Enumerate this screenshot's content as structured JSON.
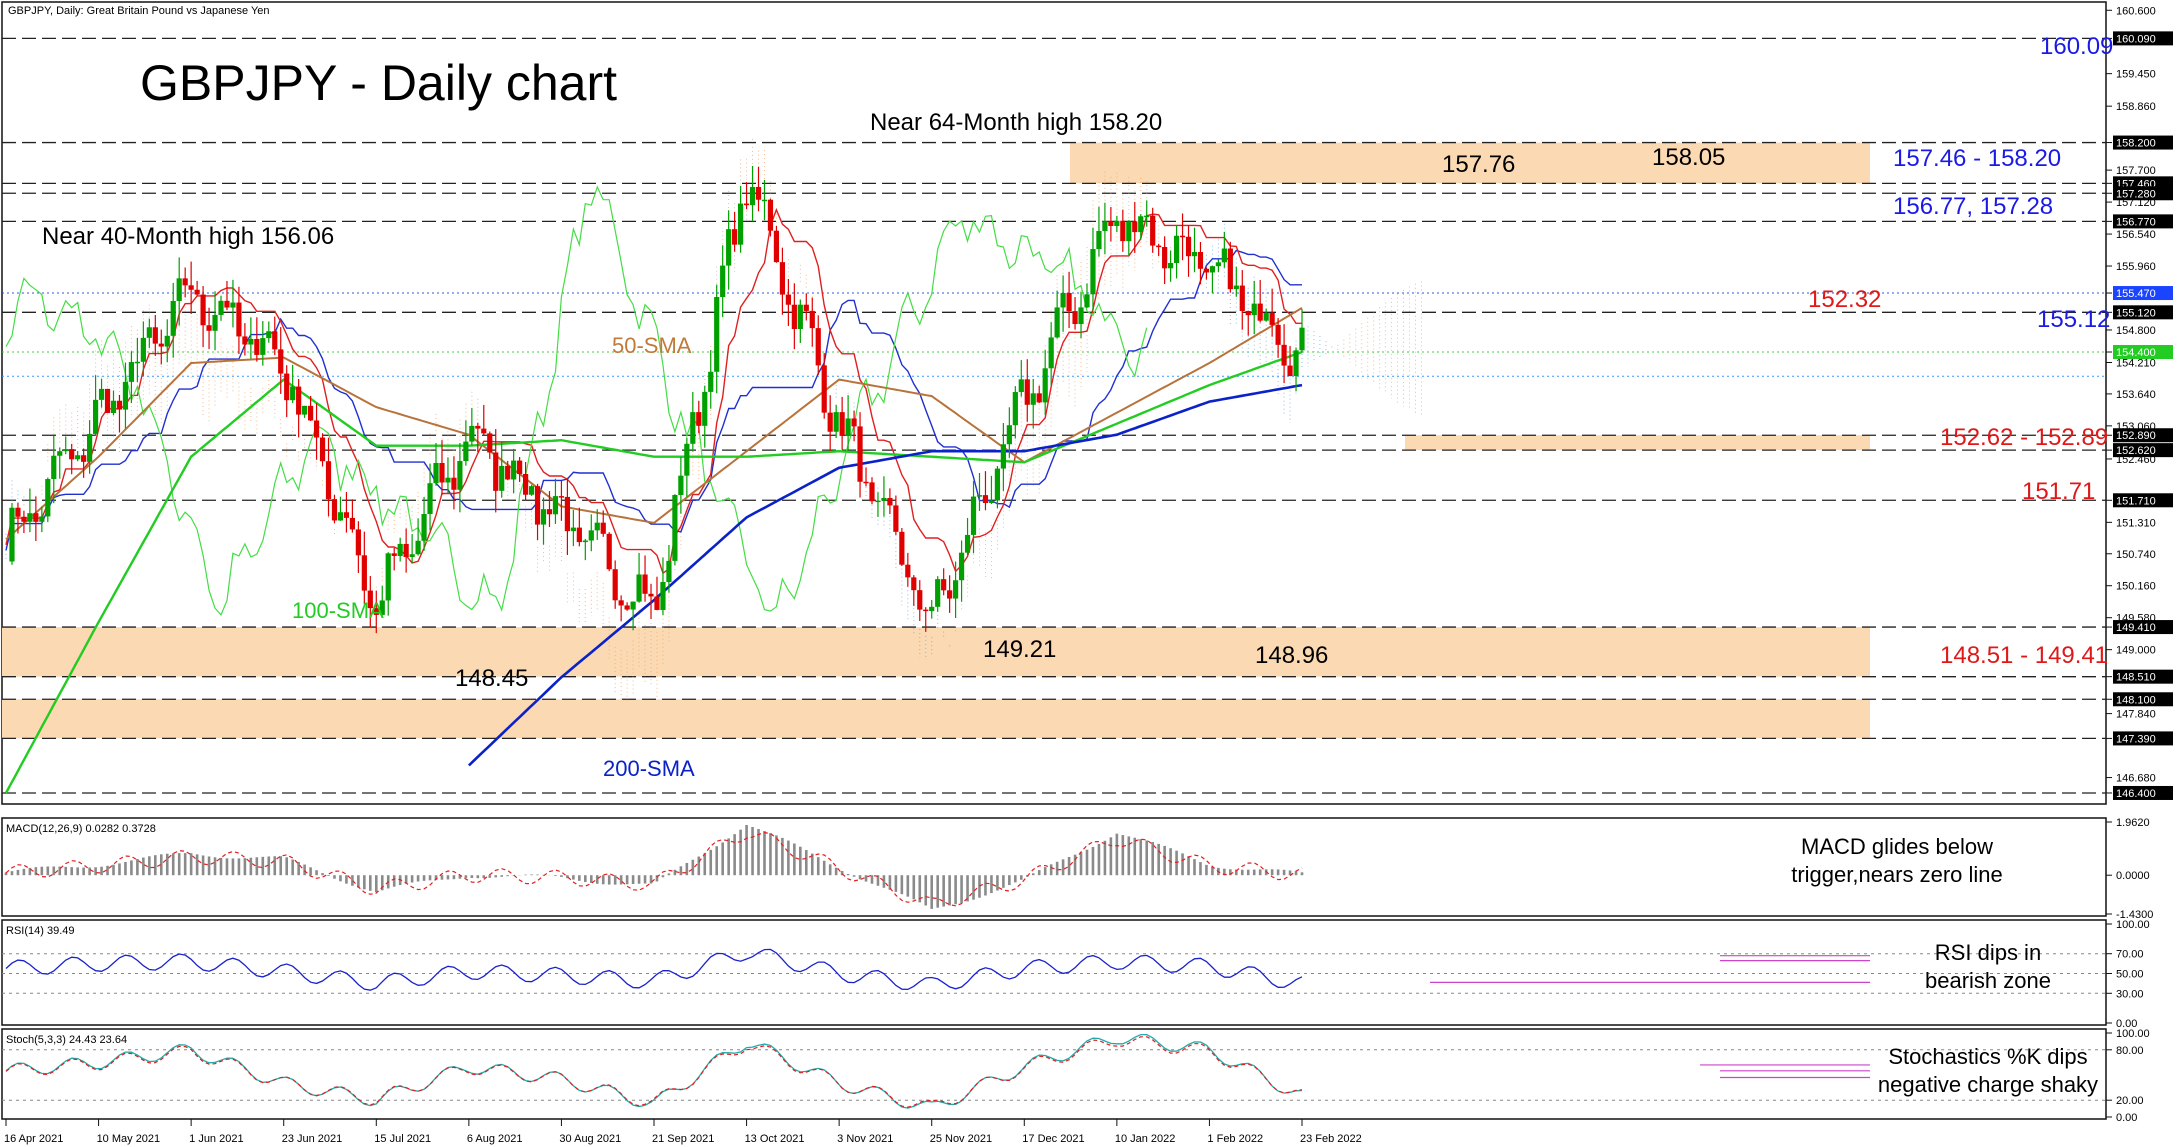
{
  "header": {
    "source_label": "GBPJPY, Daily:  Great Britain Pound vs Japanese Yen",
    "main_title": "GBPJPY - Daily chart"
  },
  "colors": {
    "bull": "#00a000",
    "bear": "#e00000",
    "sma50": "#b8733a",
    "sma100": "#22cc22",
    "sma200": "#0a22c8",
    "tenkan": "#e02020",
    "kijun": "#2030d0",
    "chikou": "#44dd44",
    "zone": "#fbd9b2",
    "label_blue": "#1a1ae6",
    "label_red": "#e01818"
  },
  "main_panel": {
    "y_ticks": [
      "160.600",
      "160.090",
      "159.450",
      "158.860",
      "158.200",
      "157.700",
      "157.460",
      "157.280",
      "157.120",
      "156.770",
      "156.540",
      "155.960",
      "155.470",
      "155.120",
      "154.800",
      "154.400",
      "154.210",
      "153.640",
      "153.060",
      "152.890",
      "152.620",
      "152.460",
      "151.710",
      "151.310",
      "150.740",
      "150.160",
      "149.580",
      "149.410",
      "149.000",
      "148.510",
      "148.100",
      "147.840",
      "147.390",
      "146.680",
      "146.400"
    ],
    "x_ticks": [
      "16 Apr 2021",
      "10 May 2021",
      "1 Jun 2021",
      "23 Jun 2021",
      "15 Jul 2021",
      "6 Aug 2021",
      "30 Aug 2021",
      "21 Sep 2021",
      "13 Oct 2021",
      "3 Nov 2021",
      "25 Nov 2021",
      "17 Dec 2021",
      "10 Jan 2022",
      "1 Feb 2022",
      "23 Feb 2022"
    ],
    "current_price": "154.400",
    "annotations": {
      "near_64m": "Near 64-Month high 158.20",
      "near_40m": "Near 40-Month high 156.06",
      "h157_76": "157.76",
      "h158_05": "158.05",
      "l148_45": "148.45",
      "l149_21": "149.21",
      "l148_96": "148.96",
      "sma50": "50-SMA",
      "sma100": "100-SMA",
      "sma200": "200-SMA"
    },
    "levels": {
      "l160_09": "160.09",
      "l157_46_158_20": "157.46 - 158.20",
      "l156_77_157_28": "156.77, 157.28",
      "l152_32": "152.32",
      "l155_12": "155.12",
      "l152_62_152_89": "152.62 - 152.89",
      "l151_71": "151.71",
      "l148_51_149_41": "148.51 - 149.41"
    }
  },
  "macd_panel": {
    "label": "MACD(12,26,9) 0.0282 0.3728",
    "y_ticks": [
      "1.9620",
      "0.0000",
      "-1.4300"
    ],
    "comment_line1": "MACD glides below",
    "comment_line2": "trigger,nears zero line"
  },
  "rsi_panel": {
    "label": "RSI(14) 39.49",
    "y_ticks": [
      "100.00",
      "70.00",
      "50.00",
      "30.00",
      "0.00"
    ],
    "comment_line1": "RSI dips in",
    "comment_line2": "bearish zone"
  },
  "stoch_panel": {
    "label": "Stoch(5,3,3) 24.43 23.64",
    "y_ticks": [
      "100.00",
      "80.00",
      "20.00",
      "0.00"
    ],
    "comment_line1": "Stochastics %K dips",
    "comment_line2": "negative charge shaky"
  },
  "chart_data": {
    "type": "candlestick",
    "title": "GBPJPY - Daily chart",
    "subtitle": "GBPJPY, Daily:  Great Britain Pound vs Japanese Yen",
    "ylim": [
      146.2,
      160.75
    ],
    "x_range": [
      "16 Apr 2021",
      "24 Feb 2022"
    ],
    "anchor_points": [
      {
        "date": "16 Apr 2021",
        "price": 150.9
      },
      {
        "date": "10 May 2021",
        "price": 153.2
      },
      {
        "date": "1 Jun 2021",
        "price": 155.5
      },
      {
        "date": "23 Jun 2021",
        "price": 154.2
      },
      {
        "date": "15 Jul 2021",
        "price": 149.8
      },
      {
        "date": "6 Aug 2021",
        "price": 152.9
      },
      {
        "date": "30 Aug 2021",
        "price": 151.4
      },
      {
        "date": "21 Sep 2021",
        "price": 149.7
      },
      {
        "date": "13 Oct 2021",
        "price": 157.6
      },
      {
        "date": "3 Nov 2021",
        "price": 153.1
      },
      {
        "date": "25 Nov 2021",
        "price": 149.5
      },
      {
        "date": "17 Dec 2021",
        "price": 153.5
      },
      {
        "date": "10 Jan 2022",
        "price": 156.9
      },
      {
        "date": "1 Feb 2022",
        "price": 155.9
      },
      {
        "date": "23 Feb 2022",
        "price": 154.4
      }
    ],
    "key_levels": [
      160.09,
      158.2,
      157.46,
      157.28,
      156.77,
      155.12,
      152.89,
      152.62,
      151.71,
      149.41,
      148.51,
      148.1,
      147.39,
      146.4
    ],
    "zones": [
      [
        157.46,
        158.2
      ],
      [
        152.62,
        152.89
      ],
      [
        148.51,
        149.41
      ],
      [
        147.39,
        148.1
      ]
    ],
    "sma50_points": [
      151.0,
      152.5,
      154.2,
      154.3,
      153.4,
      152.9,
      151.6,
      151.3,
      152.6,
      153.9,
      153.6,
      152.4,
      153.3,
      154.2,
      155.2
    ],
    "sma100_points": [
      146.4,
      149.5,
      152.5,
      153.9,
      152.7,
      152.7,
      152.8,
      152.5,
      152.5,
      152.6,
      152.5,
      152.4,
      153.1,
      153.8,
      154.4
    ],
    "sma200_points": [
      null,
      null,
      null,
      null,
      null,
      146.9,
      148.5,
      149.9,
      151.4,
      152.3,
      152.6,
      152.6,
      152.9,
      153.5,
      153.8
    ],
    "macd_points": [
      0.1,
      0.4,
      0.8,
      0.6,
      -0.6,
      0.0,
      -0.1,
      -0.4,
      1.9,
      0.3,
      -1.3,
      -0.2,
      1.6,
      0.4,
      0.03
    ],
    "rsi_points": [
      55,
      60,
      62,
      52,
      40,
      52,
      48,
      42,
      72,
      50,
      38,
      55,
      62,
      57,
      39.49
    ],
    "stoch_points": [
      55,
      65,
      80,
      40,
      20,
      60,
      45,
      15,
      90,
      40,
      10,
      60,
      95,
      80,
      24.43
    ]
  }
}
